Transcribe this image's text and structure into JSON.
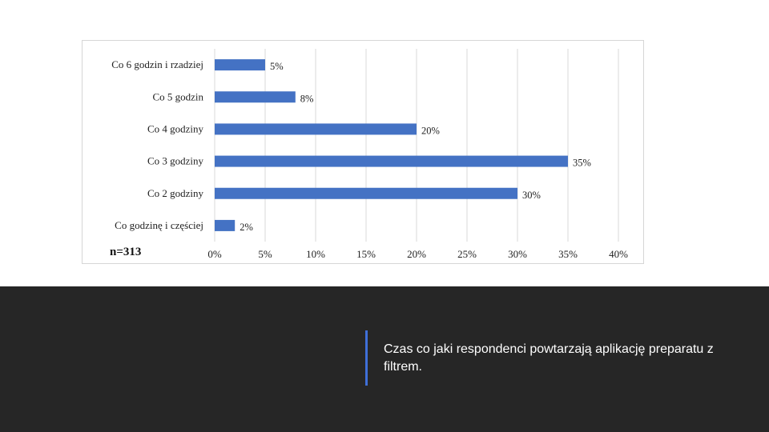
{
  "colors": {
    "bar": "#4472c4",
    "band": "#262626",
    "accent": "#3f6fd8"
  },
  "chart_data": {
    "type": "bar",
    "orientation": "horizontal",
    "categories": [
      "Co 6 godzin i rzadziej",
      "Co 5 godzin",
      "Co 4 godziny",
      "Co 3 godziny",
      "Co 2 godziny",
      "Co godzinę i częściej"
    ],
    "values": [
      5,
      8,
      20,
      35,
      30,
      2
    ],
    "value_labels": [
      "5%",
      "8%",
      "20%",
      "35%",
      "30%",
      "2%"
    ],
    "xlim": [
      0,
      40
    ],
    "xticks": [
      0,
      5,
      10,
      15,
      20,
      25,
      30,
      35,
      40
    ],
    "xtick_labels": [
      "0%",
      "5%",
      "10%",
      "15%",
      "20%",
      "25%",
      "30%",
      "35%",
      "40%"
    ],
    "grid": "vertical",
    "annotation": "n=313",
    "title": "",
    "xlabel": "",
    "ylabel": ""
  },
  "caption": "Czas co jaki respondenci powtarzają aplikację preparatu z filtrem."
}
